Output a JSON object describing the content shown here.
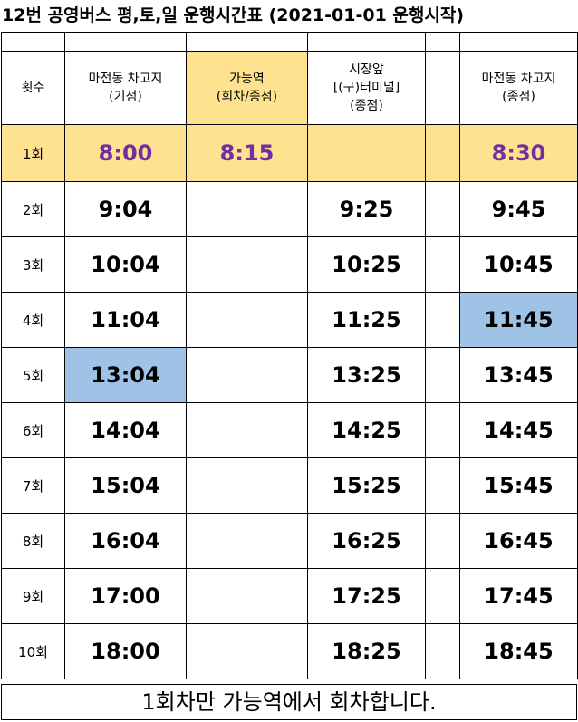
{
  "title": "12번 공영버스 평,토,일 운행시간표 (2021-01-01 운행시작)",
  "headers": {
    "count": "횟수",
    "col1": [
      "마전동 차고지",
      "(기점)"
    ],
    "col2": [
      "가능역",
      "(회차/종점)"
    ],
    "col3": [
      "시장앞",
      "[(구)터미널]",
      "(종점)"
    ],
    "col5": [
      "마전동 차고지",
      "(종점)"
    ]
  },
  "rows": [
    {
      "num": "1회",
      "c1": "8:00",
      "c2": "8:15",
      "c3": "",
      "c5": "8:30"
    },
    {
      "num": "2회",
      "c1": "9:04",
      "c2": "",
      "c3": "9:25",
      "c5": "9:45"
    },
    {
      "num": "3회",
      "c1": "10:04",
      "c2": "",
      "c3": "10:25",
      "c5": "10:45"
    },
    {
      "num": "4회",
      "c1": "11:04",
      "c2": "",
      "c3": "11:25",
      "c5": "11:45"
    },
    {
      "num": "5회",
      "c1": "13:04",
      "c2": "",
      "c3": "13:25",
      "c5": "13:45"
    },
    {
      "num": "6회",
      "c1": "14:04",
      "c2": "",
      "c3": "14:25",
      "c5": "14:45"
    },
    {
      "num": "7회",
      "c1": "15:04",
      "c2": "",
      "c3": "15:25",
      "c5": "15:45"
    },
    {
      "num": "8회",
      "c1": "16:04",
      "c2": "",
      "c3": "16:25",
      "c5": "16:45"
    },
    {
      "num": "9회",
      "c1": "17:00",
      "c2": "",
      "c3": "17:25",
      "c5": "17:45"
    },
    {
      "num": "10회",
      "c1": "18:00",
      "c2": "",
      "c3": "18:25",
      "c5": "18:45"
    }
  ],
  "footer": "1회차만 가능역에서 회차합니다.",
  "colors": {
    "first_row_bg": "#ffe28f",
    "first_row_text": "#7030a0",
    "highlight_blue": "#9ec3e6"
  }
}
